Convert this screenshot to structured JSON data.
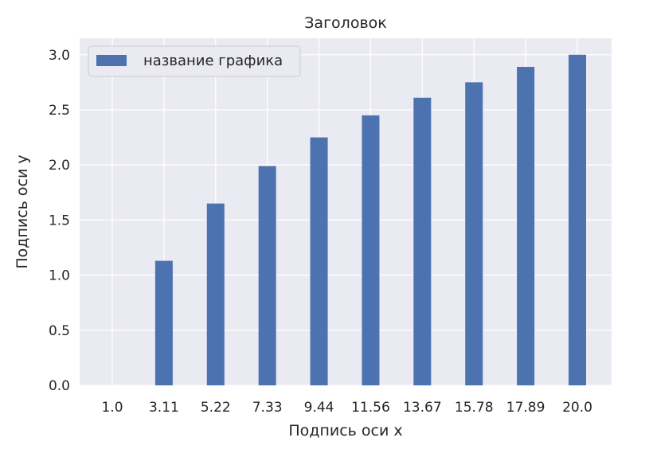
{
  "chart_data": {
    "type": "bar",
    "title": "Заголовок",
    "xlabel": "Подпись оси x",
    "ylabel": "Подпись оси y",
    "categories": [
      "1.0",
      "3.11",
      "5.22",
      "7.33",
      "9.44",
      "11.56",
      "13.67",
      "15.78",
      "17.89",
      "20.0"
    ],
    "series": [
      {
        "name": "название графика",
        "values": [
          0.0,
          1.13,
          1.65,
          1.99,
          2.25,
          2.45,
          2.61,
          2.75,
          2.89,
          3.0
        ],
        "color": "#4c72b0"
      }
    ],
    "ylim": [
      0,
      3.15
    ],
    "yticks": [
      "0.0",
      "0.5",
      "1.0",
      "1.5",
      "2.0",
      "2.5",
      "3.0"
    ],
    "grid": true,
    "legend_position": "top-left",
    "colors": {
      "plot_background": "#eaeaf2",
      "grid": "#ffffff",
      "bar": "#4c72b0"
    }
  }
}
